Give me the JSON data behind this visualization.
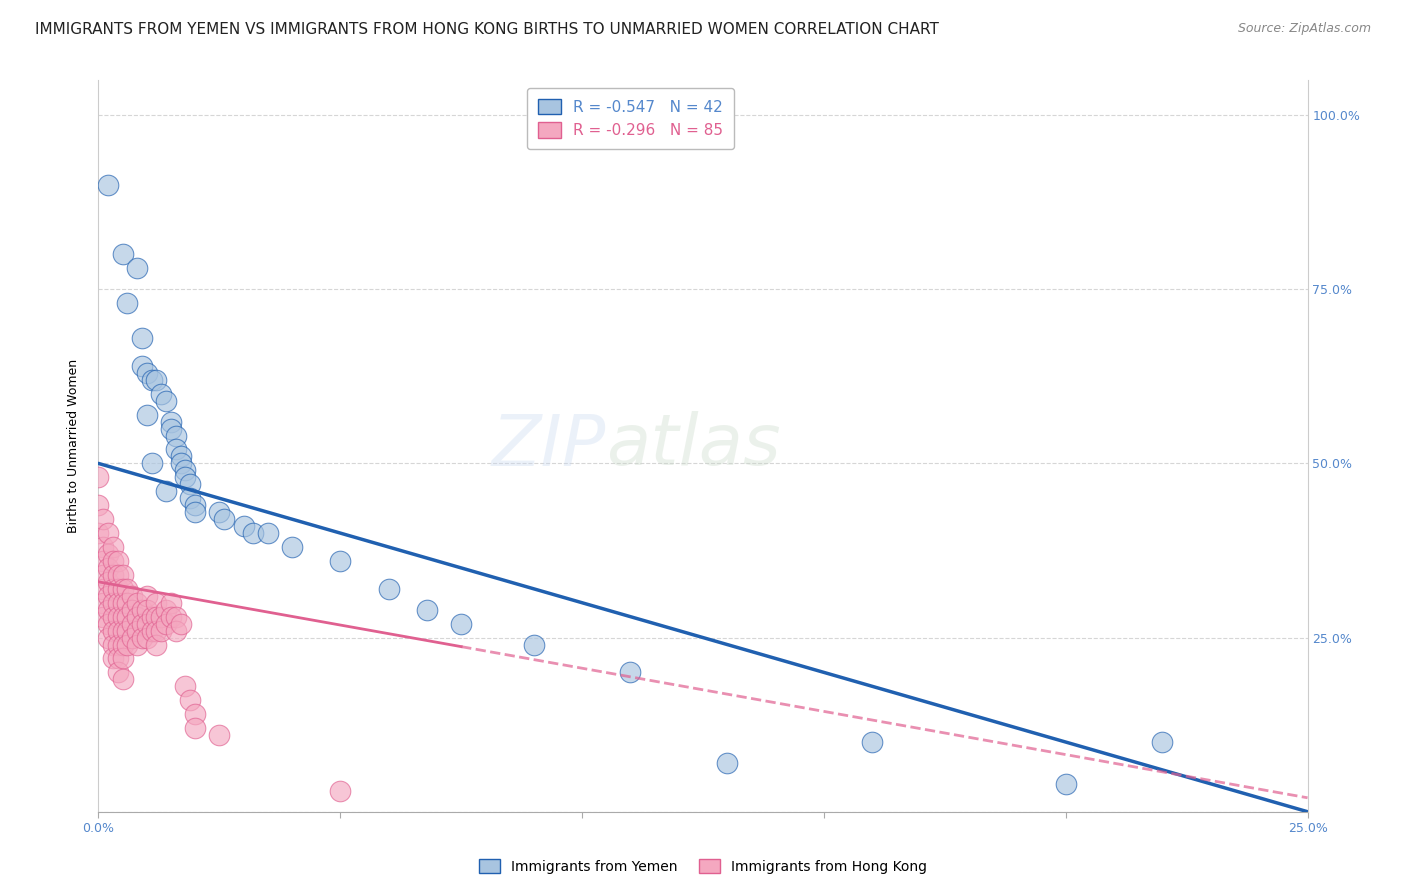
{
  "title": "IMMIGRANTS FROM YEMEN VS IMMIGRANTS FROM HONG KONG BIRTHS TO UNMARRIED WOMEN CORRELATION CHART",
  "source": "Source: ZipAtlas.com",
  "ylabel": "Births to Unmarried Women",
  "legend_yemen": "R = -0.547   N = 42",
  "legend_hk": "R = -0.296   N = 85",
  "legend_label_yemen": "Immigrants from Yemen",
  "legend_label_hk": "Immigrants from Hong Kong",
  "color_yemen": "#a8c4e0",
  "color_hk": "#f4a8c0",
  "color_line_yemen": "#2060b0",
  "color_line_hk": "#e06090",
  "watermark_zip": "ZIP",
  "watermark_atlas": "atlas",
  "xlim": [
    0.0,
    0.25
  ],
  "ylim": [
    0.0,
    1.05
  ],
  "yemen_points": [
    [
      0.002,
      0.9
    ],
    [
      0.005,
      0.8
    ],
    [
      0.008,
      0.78
    ],
    [
      0.006,
      0.73
    ],
    [
      0.009,
      0.68
    ],
    [
      0.009,
      0.64
    ],
    [
      0.01,
      0.63
    ],
    [
      0.011,
      0.62
    ],
    [
      0.012,
      0.62
    ],
    [
      0.013,
      0.6
    ],
    [
      0.014,
      0.59
    ],
    [
      0.01,
      0.57
    ],
    [
      0.015,
      0.56
    ],
    [
      0.015,
      0.55
    ],
    [
      0.016,
      0.54
    ],
    [
      0.016,
      0.52
    ],
    [
      0.017,
      0.51
    ],
    [
      0.011,
      0.5
    ],
    [
      0.017,
      0.5
    ],
    [
      0.018,
      0.49
    ],
    [
      0.018,
      0.48
    ],
    [
      0.019,
      0.47
    ],
    [
      0.014,
      0.46
    ],
    [
      0.019,
      0.45
    ],
    [
      0.02,
      0.44
    ],
    [
      0.02,
      0.43
    ],
    [
      0.025,
      0.43
    ],
    [
      0.026,
      0.42
    ],
    [
      0.03,
      0.41
    ],
    [
      0.032,
      0.4
    ],
    [
      0.035,
      0.4
    ],
    [
      0.04,
      0.38
    ],
    [
      0.05,
      0.36
    ],
    [
      0.06,
      0.32
    ],
    [
      0.068,
      0.29
    ],
    [
      0.075,
      0.27
    ],
    [
      0.09,
      0.24
    ],
    [
      0.11,
      0.2
    ],
    [
      0.13,
      0.07
    ],
    [
      0.16,
      0.1
    ],
    [
      0.2,
      0.04
    ],
    [
      0.22,
      0.1
    ]
  ],
  "hk_points": [
    [
      0.0,
      0.48
    ],
    [
      0.0,
      0.44
    ],
    [
      0.0,
      0.4
    ],
    [
      0.001,
      0.42
    ],
    [
      0.001,
      0.38
    ],
    [
      0.001,
      0.36
    ],
    [
      0.001,
      0.34
    ],
    [
      0.001,
      0.32
    ],
    [
      0.001,
      0.3
    ],
    [
      0.001,
      0.28
    ],
    [
      0.002,
      0.4
    ],
    [
      0.002,
      0.37
    ],
    [
      0.002,
      0.35
    ],
    [
      0.002,
      0.33
    ],
    [
      0.002,
      0.31
    ],
    [
      0.002,
      0.29
    ],
    [
      0.002,
      0.27
    ],
    [
      0.002,
      0.25
    ],
    [
      0.003,
      0.38
    ],
    [
      0.003,
      0.36
    ],
    [
      0.003,
      0.34
    ],
    [
      0.003,
      0.32
    ],
    [
      0.003,
      0.3
    ],
    [
      0.003,
      0.28
    ],
    [
      0.003,
      0.26
    ],
    [
      0.003,
      0.24
    ],
    [
      0.003,
      0.22
    ],
    [
      0.004,
      0.36
    ],
    [
      0.004,
      0.34
    ],
    [
      0.004,
      0.32
    ],
    [
      0.004,
      0.3
    ],
    [
      0.004,
      0.28
    ],
    [
      0.004,
      0.26
    ],
    [
      0.004,
      0.24
    ],
    [
      0.004,
      0.22
    ],
    [
      0.004,
      0.2
    ],
    [
      0.005,
      0.34
    ],
    [
      0.005,
      0.32
    ],
    [
      0.005,
      0.3
    ],
    [
      0.005,
      0.28
    ],
    [
      0.005,
      0.26
    ],
    [
      0.005,
      0.24
    ],
    [
      0.005,
      0.22
    ],
    [
      0.005,
      0.19
    ],
    [
      0.006,
      0.32
    ],
    [
      0.006,
      0.3
    ],
    [
      0.006,
      0.28
    ],
    [
      0.006,
      0.26
    ],
    [
      0.006,
      0.24
    ],
    [
      0.007,
      0.31
    ],
    [
      0.007,
      0.29
    ],
    [
      0.007,
      0.27
    ],
    [
      0.007,
      0.25
    ],
    [
      0.008,
      0.3
    ],
    [
      0.008,
      0.28
    ],
    [
      0.008,
      0.26
    ],
    [
      0.008,
      0.24
    ],
    [
      0.009,
      0.29
    ],
    [
      0.009,
      0.27
    ],
    [
      0.009,
      0.25
    ],
    [
      0.01,
      0.31
    ],
    [
      0.01,
      0.29
    ],
    [
      0.01,
      0.27
    ],
    [
      0.01,
      0.25
    ],
    [
      0.011,
      0.28
    ],
    [
      0.011,
      0.26
    ],
    [
      0.012,
      0.3
    ],
    [
      0.012,
      0.28
    ],
    [
      0.012,
      0.26
    ],
    [
      0.012,
      0.24
    ],
    [
      0.013,
      0.28
    ],
    [
      0.013,
      0.26
    ],
    [
      0.014,
      0.29
    ],
    [
      0.014,
      0.27
    ],
    [
      0.015,
      0.3
    ],
    [
      0.015,
      0.28
    ],
    [
      0.016,
      0.28
    ],
    [
      0.016,
      0.26
    ],
    [
      0.017,
      0.27
    ],
    [
      0.018,
      0.18
    ],
    [
      0.019,
      0.16
    ],
    [
      0.02,
      0.14
    ],
    [
      0.02,
      0.12
    ],
    [
      0.025,
      0.11
    ],
    [
      0.05,
      0.03
    ]
  ],
  "yemen_trendline_x": [
    0.0,
    0.25
  ],
  "yemen_trendline_y": [
    0.5,
    0.0
  ],
  "hk_trendline_x": [
    0.0,
    0.25
  ],
  "hk_trendline_y": [
    0.33,
    0.02
  ],
  "background_color": "#ffffff",
  "grid_color": "#cccccc",
  "title_fontsize": 11,
  "axis_fontsize": 9,
  "tick_fontsize": 9,
  "watermark_fontsize_zip": 52,
  "watermark_fontsize_atlas": 52,
  "watermark_alpha": 0.35
}
